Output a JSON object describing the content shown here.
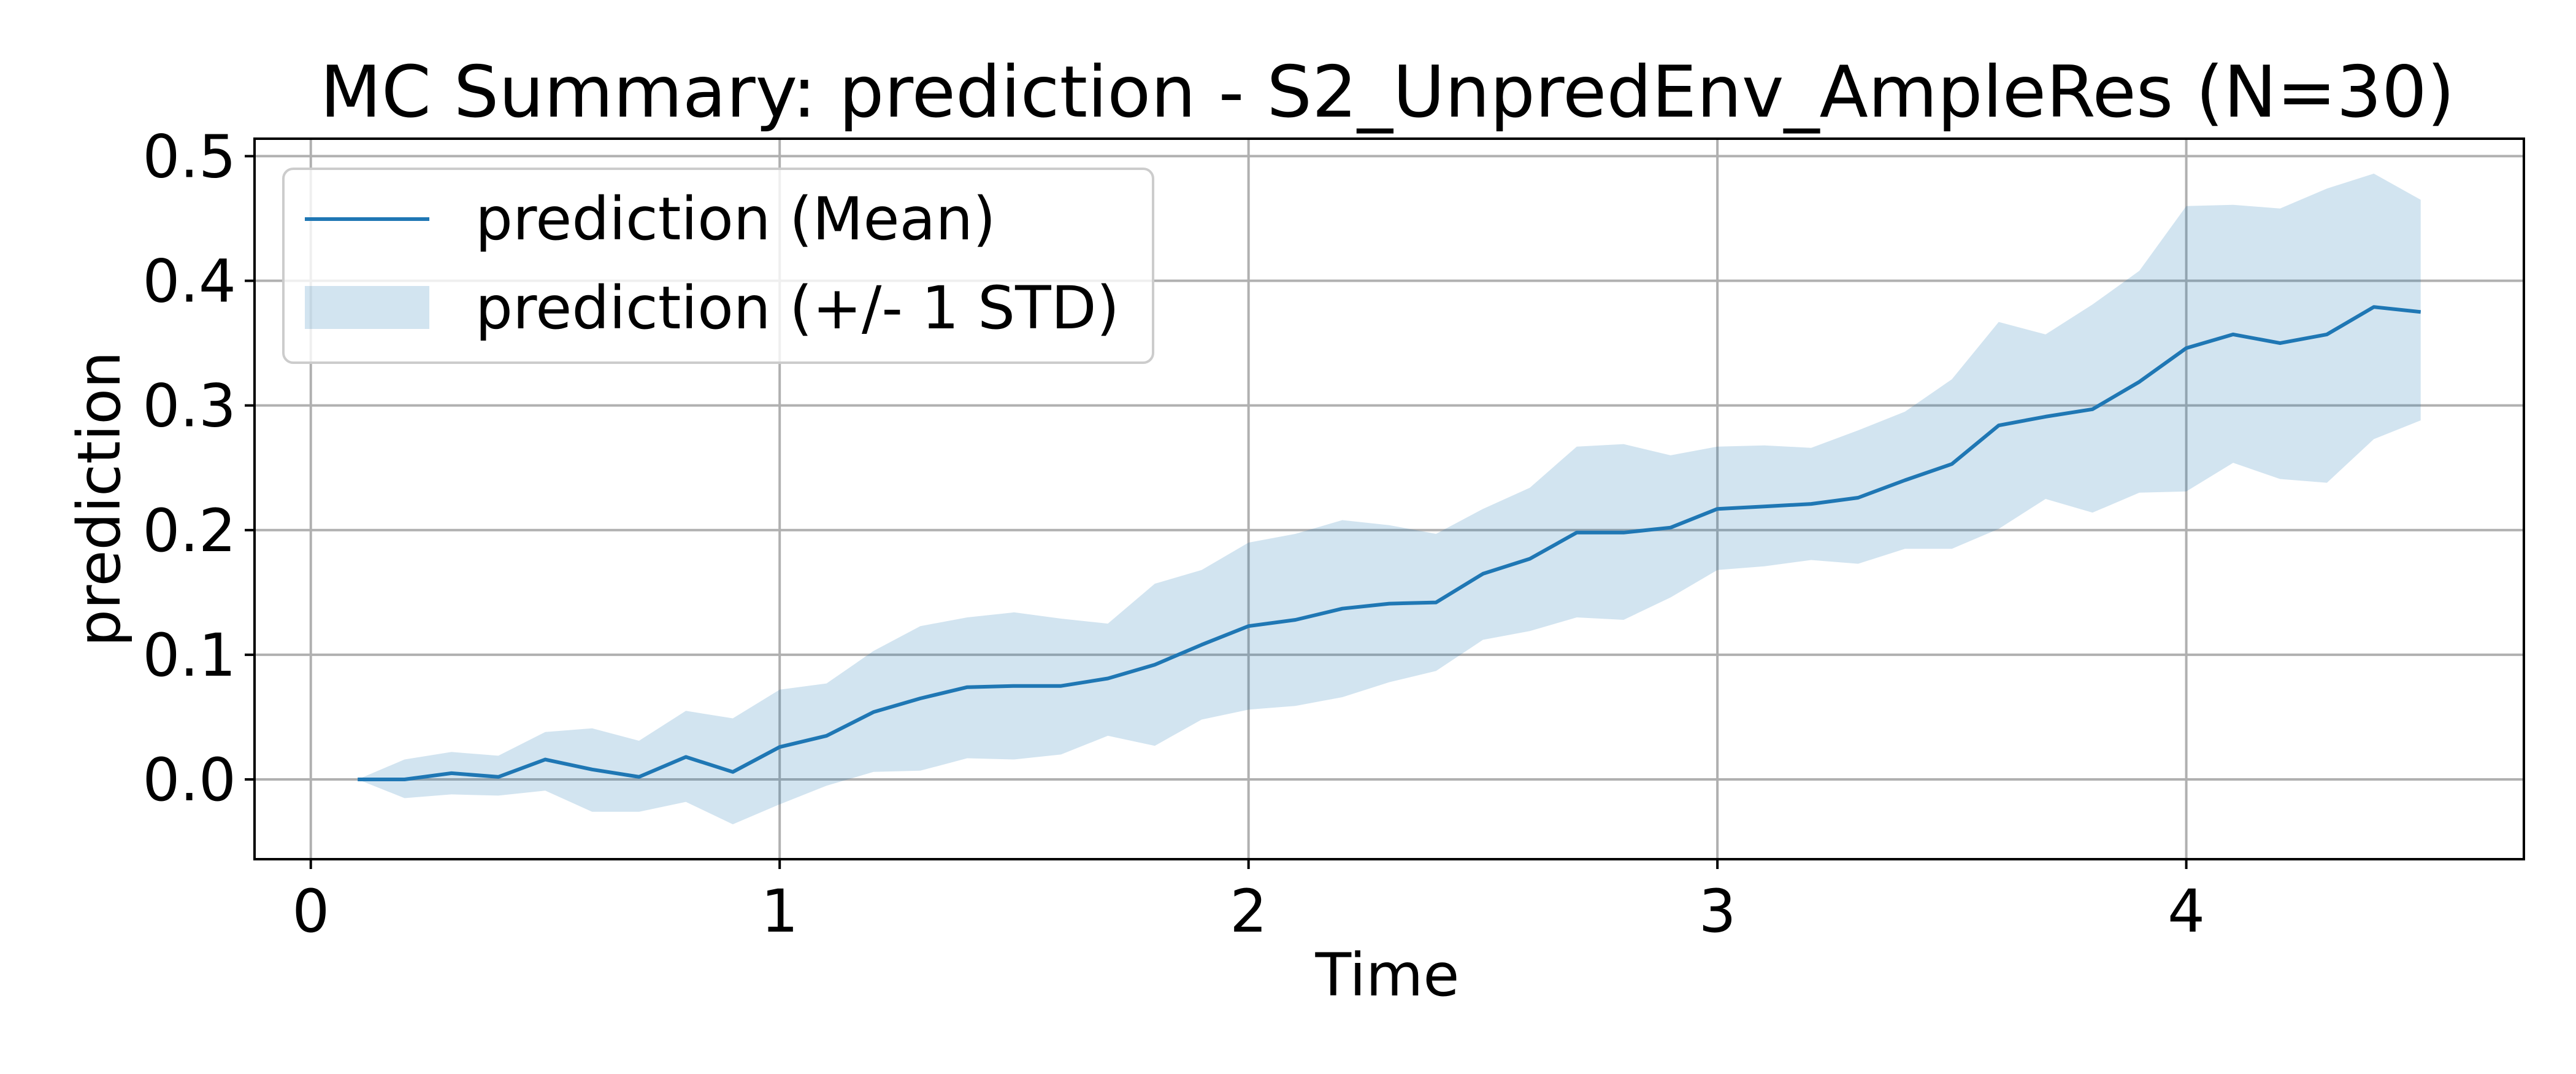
{
  "chart_data": {
    "type": "line",
    "title": "MC Summary: prediction - S2_UnpredEnv_AmpleRes (N=30)",
    "xlabel": "Time",
    "ylabel": "prediction",
    "xlim": [
      -0.12,
      4.72
    ],
    "ylim": [
      -0.064,
      0.514
    ],
    "xticks": [
      0,
      1,
      2,
      3,
      4
    ],
    "xtick_labels": [
      "0",
      "1",
      "2",
      "3",
      "4"
    ],
    "yticks": [
      0.0,
      0.1,
      0.2,
      0.3,
      0.4,
      0.5
    ],
    "ytick_labels": [
      "0.0",
      "0.1",
      "0.2",
      "0.3",
      "0.4",
      "0.5"
    ],
    "grid": true,
    "legend_position": "top-left",
    "colors": {
      "mean_line": "#1f77b4",
      "band_fill": "#1f77b4"
    },
    "x": [
      0.1,
      0.2,
      0.3,
      0.4,
      0.5,
      0.6,
      0.7,
      0.8,
      0.9,
      1.0,
      1.1,
      1.2,
      1.3,
      1.4,
      1.5,
      1.6,
      1.7,
      1.8,
      1.9,
      2.0,
      2.1,
      2.2,
      2.3,
      2.4,
      2.5,
      2.6,
      2.7,
      2.8,
      2.9,
      3.0,
      3.1,
      3.2,
      3.3,
      3.4,
      3.5,
      3.6,
      3.7,
      3.8,
      3.9,
      4.0,
      4.1,
      4.2,
      4.3,
      4.4,
      4.5
    ],
    "series": [
      {
        "name": "prediction (Mean)",
        "role": "line",
        "values": [
          0.0,
          0.0,
          0.005,
          0.002,
          0.016,
          0.008,
          0.002,
          0.018,
          0.006,
          0.026,
          0.035,
          0.054,
          0.065,
          0.074,
          0.075,
          0.075,
          0.081,
          0.092,
          0.108,
          0.123,
          0.128,
          0.137,
          0.141,
          0.142,
          0.165,
          0.177,
          0.198,
          0.198,
          0.202,
          0.217,
          0.219,
          0.221,
          0.226,
          0.24,
          0.253,
          0.284,
          0.291,
          0.297,
          0.319,
          0.346,
          0.357,
          0.35,
          0.357,
          0.379,
          0.375
        ]
      },
      {
        "name": "prediction (+/- 1 STD)",
        "role": "band",
        "upper": [
          0.0,
          0.016,
          0.022,
          0.019,
          0.038,
          0.041,
          0.031,
          0.055,
          0.049,
          0.072,
          0.077,
          0.103,
          0.123,
          0.13,
          0.134,
          0.129,
          0.125,
          0.157,
          0.168,
          0.19,
          0.197,
          0.208,
          0.204,
          0.197,
          0.217,
          0.234,
          0.267,
          0.269,
          0.26,
          0.267,
          0.268,
          0.266,
          0.28,
          0.295,
          0.321,
          0.367,
          0.357,
          0.381,
          0.408,
          0.46,
          0.461,
          0.458,
          0.474,
          0.486,
          0.465
        ],
        "lower": [
          0.0,
          -0.015,
          -0.012,
          -0.013,
          -0.009,
          -0.026,
          -0.026,
          -0.018,
          -0.036,
          -0.02,
          -0.005,
          0.006,
          0.007,
          0.017,
          0.016,
          0.02,
          0.035,
          0.027,
          0.048,
          0.056,
          0.059,
          0.066,
          0.078,
          0.087,
          0.112,
          0.119,
          0.13,
          0.128,
          0.146,
          0.168,
          0.171,
          0.176,
          0.173,
          0.185,
          0.185,
          0.201,
          0.225,
          0.214,
          0.23,
          0.231,
          0.254,
          0.241,
          0.238,
          0.273,
          0.288
        ]
      }
    ]
  }
}
